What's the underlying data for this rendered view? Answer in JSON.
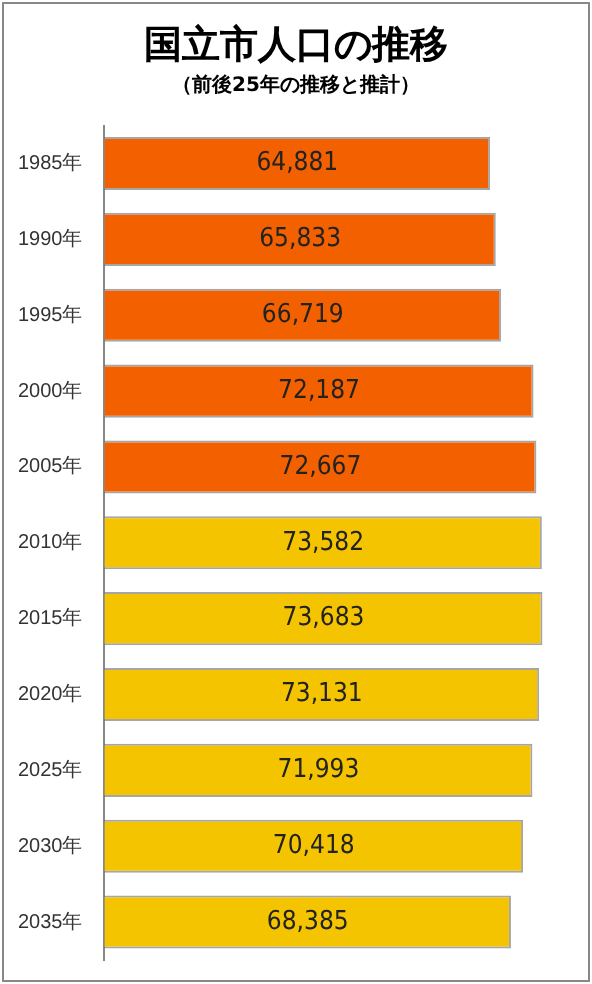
{
  "chart_data": {
    "type": "bar",
    "title": "国立市人口の推移",
    "subtitle": "（前後25年の推移と推計）",
    "orientation": "horizontal",
    "categories": [
      "1985年",
      "1990年",
      "1995年",
      "2000年",
      "2005年",
      "2010年",
      "2015年",
      "2020年",
      "2025年",
      "2030年",
      "2035年"
    ],
    "values": [
      64881,
      65833,
      66719,
      72187,
      72667,
      73582,
      73683,
      73131,
      71993,
      70418,
      68385
    ],
    "colors": [
      "#f26000",
      "#f26000",
      "#f26000",
      "#f26000",
      "#f26000",
      "#f5c400",
      "#f5c400",
      "#f5c400",
      "#f5c400",
      "#f5c400",
      "#f5c400"
    ],
    "value_labels": [
      "64,881",
      "65,833",
      "66,719",
      "72,187",
      "72,667",
      "73,582",
      "73,683",
      "73,131",
      "71,993",
      "70,418",
      "68,385"
    ],
    "legend": false
  }
}
